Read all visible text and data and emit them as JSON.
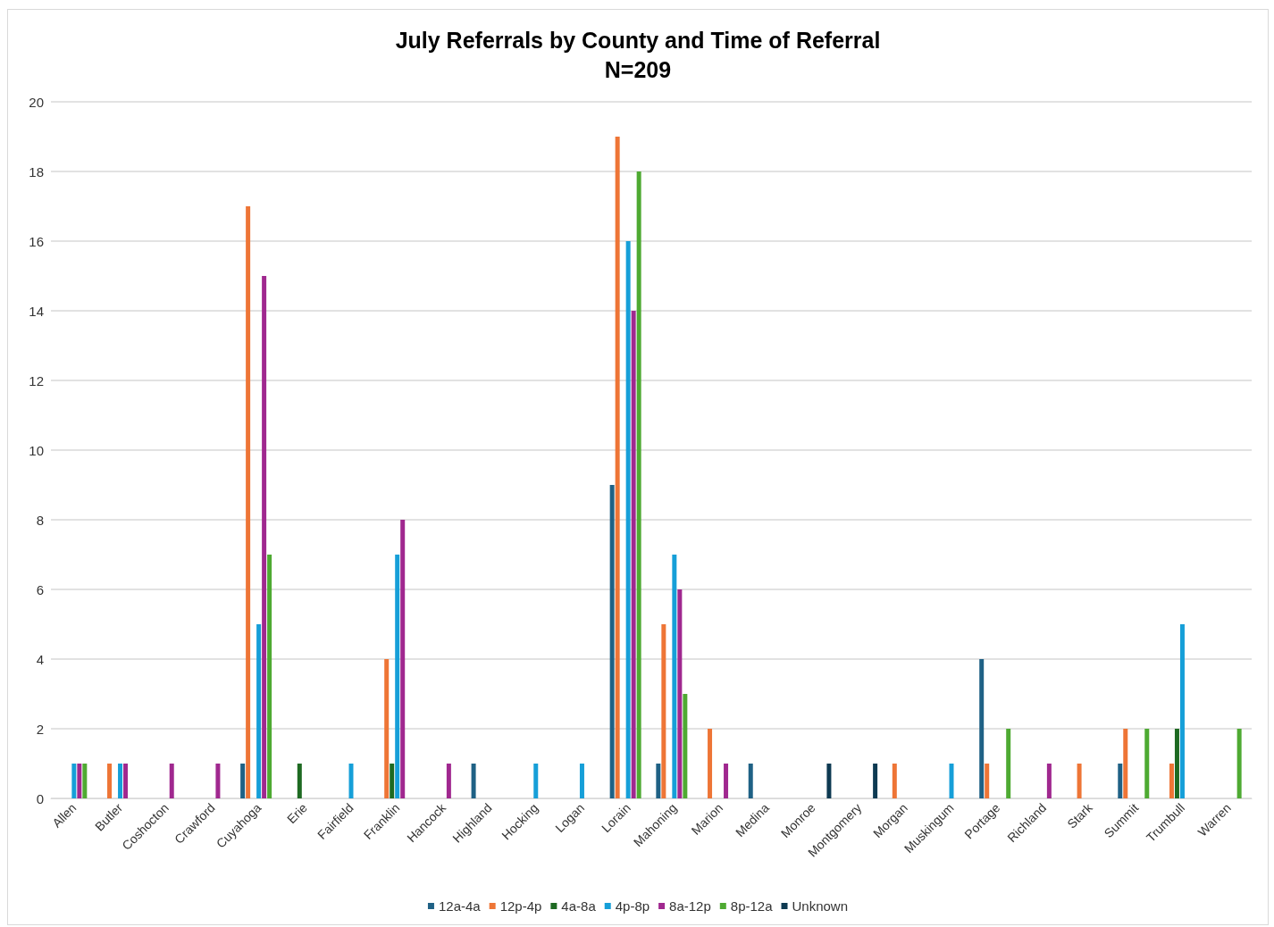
{
  "chart_data": {
    "type": "bar",
    "title": "July Referrals by County and Time of Referral",
    "subtitle": "N=209",
    "categories": [
      "Allen",
      "Butler",
      "Coshocton",
      "Crawford",
      "Cuyahoga",
      "Erie",
      "Fairfield",
      "Franklin",
      "Hancock",
      "Highland",
      "Hocking",
      "Logan",
      "Lorain",
      "Mahoning",
      "Marion",
      "Medina",
      "Monroe",
      "Montgomery",
      "Morgan",
      "Muskingum",
      "Portage",
      "Richland",
      "Stark",
      "Summit",
      "Trumbull",
      "Warren"
    ],
    "series": [
      {
        "name": "12a-4a",
        "color": "#1f6185",
        "values": [
          null,
          null,
          null,
          null,
          1,
          null,
          null,
          null,
          null,
          1,
          null,
          null,
          9,
          1,
          null,
          1,
          null,
          null,
          null,
          null,
          4,
          null,
          null,
          1,
          null,
          null
        ]
      },
      {
        "name": "12p-4p",
        "color": "#ee7536",
        "values": [
          null,
          1,
          null,
          null,
          17,
          null,
          null,
          4,
          null,
          null,
          null,
          null,
          19,
          5,
          2,
          null,
          null,
          null,
          1,
          null,
          1,
          null,
          1,
          2,
          1,
          null
        ]
      },
      {
        "name": "4a-8a",
        "color": "#1e6a22",
        "values": [
          null,
          null,
          null,
          null,
          null,
          1,
          null,
          1,
          null,
          null,
          null,
          null,
          null,
          null,
          null,
          null,
          null,
          null,
          null,
          null,
          null,
          null,
          null,
          null,
          2,
          null
        ]
      },
      {
        "name": "4p-8p",
        "color": "#169fd8",
        "values": [
          1,
          1,
          null,
          null,
          5,
          null,
          1,
          7,
          null,
          null,
          1,
          1,
          16,
          7,
          null,
          null,
          null,
          null,
          null,
          1,
          null,
          null,
          null,
          null,
          5,
          null
        ]
      },
      {
        "name": "8a-12p",
        "color": "#a0288f",
        "values": [
          1,
          1,
          1,
          1,
          15,
          null,
          null,
          8,
          1,
          null,
          null,
          null,
          14,
          6,
          1,
          null,
          null,
          null,
          null,
          null,
          null,
          1,
          null,
          null,
          null,
          null
        ]
      },
      {
        "name": "8p-12a",
        "color": "#4eaa32",
        "values": [
          1,
          null,
          null,
          null,
          7,
          null,
          null,
          null,
          null,
          null,
          null,
          null,
          18,
          3,
          null,
          null,
          null,
          null,
          null,
          null,
          2,
          null,
          null,
          2,
          null,
          2
        ]
      },
      {
        "name": "Unknown",
        "color": "#0e3a52",
        "values": [
          null,
          null,
          null,
          null,
          null,
          null,
          null,
          null,
          null,
          null,
          null,
          null,
          null,
          null,
          null,
          null,
          1,
          1,
          null,
          null,
          null,
          null,
          null,
          null,
          null,
          null
        ]
      }
    ],
    "ylim": [
      0,
      20
    ],
    "yticks": [
      0,
      2,
      4,
      6,
      8,
      10,
      12,
      14,
      16,
      18,
      20
    ],
    "grid": "y",
    "legend": "bottom"
  }
}
